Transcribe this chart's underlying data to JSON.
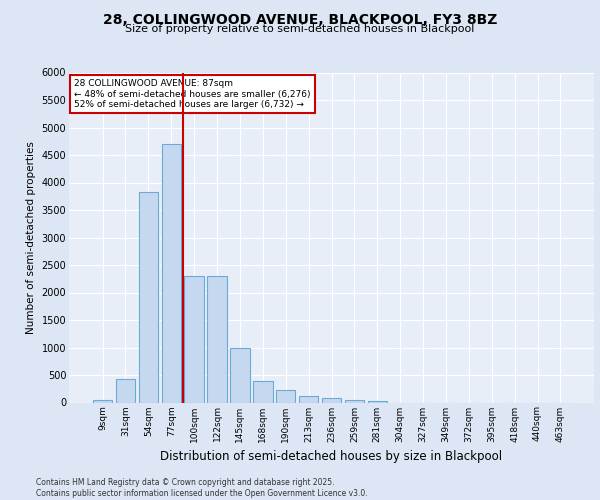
{
  "title_line1": "28, COLLINGWOOD AVENUE, BLACKPOOL, FY3 8BZ",
  "title_line2": "Size of property relative to semi-detached houses in Blackpool",
  "xlabel": "Distribution of semi-detached houses by size in Blackpool",
  "ylabel": "Number of semi-detached properties",
  "footnote": "Contains HM Land Registry data © Crown copyright and database right 2025.\nContains public sector information licensed under the Open Government Licence v3.0.",
  "bins": [
    "9sqm",
    "31sqm",
    "54sqm",
    "77sqm",
    "100sqm",
    "122sqm",
    "145sqm",
    "168sqm",
    "190sqm",
    "213sqm",
    "236sqm",
    "259sqm",
    "281sqm",
    "304sqm",
    "327sqm",
    "349sqm",
    "372sqm",
    "395sqm",
    "418sqm",
    "440sqm",
    "463sqm"
  ],
  "bar_values": [
    50,
    430,
    3820,
    4700,
    2300,
    2300,
    1000,
    400,
    220,
    120,
    80,
    50,
    20,
    0,
    0,
    0,
    0,
    0,
    0,
    0,
    0
  ],
  "bar_color": "#c5d8f0",
  "bar_edge_color": "#6aaad4",
  "red_line_bin_index": 4,
  "annotation_title": "28 COLLINGWOOD AVENUE: 87sqm",
  "annotation_line1": "← 48% of semi-detached houses are smaller (6,276)",
  "annotation_line2": "52% of semi-detached houses are larger (6,732) →",
  "ylim_max": 6000,
  "ytick_step": 500,
  "bg_color": "#dce6f5",
  "plot_bg_color": "#e8eef8",
  "grid_color": "#ffffff",
  "title1_fontsize": 10,
  "title2_fontsize": 8,
  "ylabel_fontsize": 7.5,
  "xlabel_fontsize": 8.5,
  "tick_fontsize": 7,
  "xtick_fontsize": 6.5,
  "footnote_fontsize": 5.5
}
